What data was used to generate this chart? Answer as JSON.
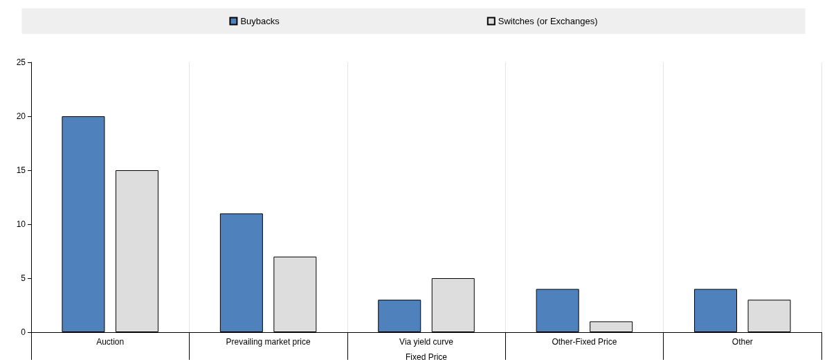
{
  "chart_data": {
    "type": "bar",
    "categories": [
      "Auction",
      "Prevailing market price",
      "Via yield curve",
      "Other-Fixed Price",
      "Other"
    ],
    "series": [
      {
        "name": "Buybacks",
        "color": "#4f81bd",
        "values": [
          20,
          11,
          3,
          4,
          4
        ]
      },
      {
        "name": "Switches (or Exchanges)",
        "color": "#dddddd",
        "values": [
          15,
          7,
          5,
          1,
          3
        ]
      }
    ],
    "ylim": [
      0,
      25
    ],
    "yticks": [
      0,
      5,
      10,
      15,
      20,
      25
    ],
    "grid": "x",
    "legend": "top",
    "annotations": [
      "Fixed Price"
    ]
  }
}
